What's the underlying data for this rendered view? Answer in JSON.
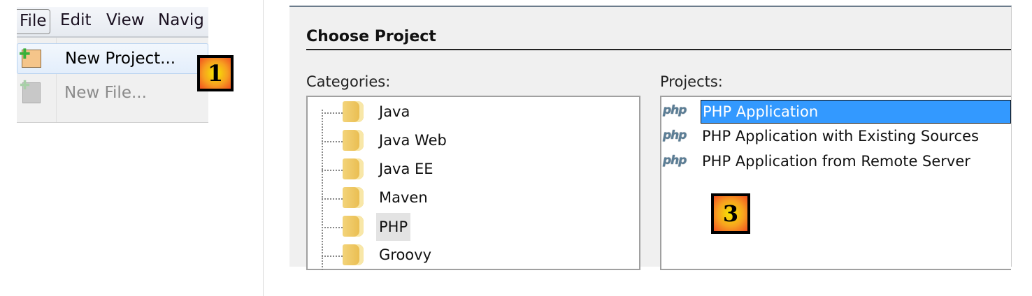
{
  "menu": {
    "bar": [
      "File",
      "Edit",
      "View",
      "Navig"
    ],
    "items": [
      {
        "label": "New Project...",
        "icon": "new-project-icon",
        "enabled": true
      },
      {
        "label": "New File...",
        "icon": "new-file-icon",
        "enabled": false
      }
    ]
  },
  "badges": [
    "1",
    "3"
  ],
  "dialog": {
    "title": "Choose Project",
    "categories_label": "Categories:",
    "projects_label": "Projects:",
    "categories": [
      "Java",
      "Java Web",
      "Java EE",
      "Maven",
      "PHP",
      "Groovy"
    ],
    "selected_category": "PHP",
    "projects": [
      {
        "label": "PHP Application",
        "icon": "php"
      },
      {
        "label": "PHP Application with Existing Sources",
        "icon": "php"
      },
      {
        "label": "PHP Application from Remote Server",
        "icon": "php"
      }
    ],
    "selected_project": "PHP Application"
  },
  "colors": {
    "selection": "#3399ff",
    "badge_border": "#000000"
  }
}
